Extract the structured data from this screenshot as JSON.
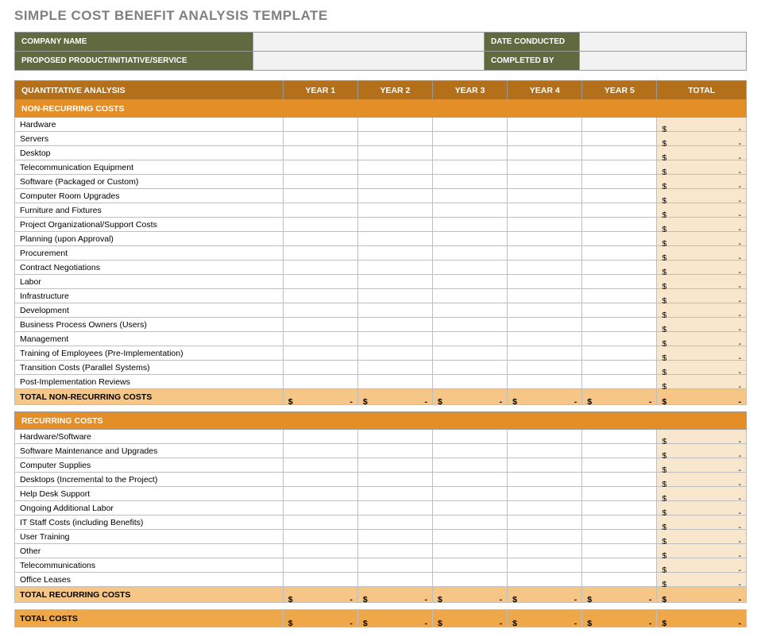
{
  "title": "SIMPLE COST BENEFIT ANALYSIS TEMPLATE",
  "info": {
    "company_label": "COMPANY NAME",
    "company_value": "",
    "date_label": "DATE CONDUCTED",
    "date_value": "",
    "product_label": "PROPOSED PRODUCT/INITIATIVE/SERVICE",
    "product_value": "",
    "completed_label": "COMPLETED BY",
    "completed_value": ""
  },
  "headers": {
    "main": "QUANTITATIVE ANALYSIS",
    "y1": "YEAR 1",
    "y2": "YEAR 2",
    "y3": "YEAR 3",
    "y4": "YEAR 4",
    "y5": "YEAR 5",
    "total": "TOTAL"
  },
  "categories": {
    "nonrec": "NON-RECURRING COSTS",
    "rec": "RECURRING COSTS"
  },
  "nonrec_items": [
    "Hardware",
    "Servers",
    "Desktop",
    "Telecommunication Equipment",
    "Software (Packaged or Custom)",
    "Computer Room Upgrades",
    "Furniture and Fixtures",
    "Project Organizational/Support Costs",
    "Planning (upon Approval)",
    "Procurement",
    "Contract Negotiations",
    "Labor",
    "Infrastructure",
    "Development",
    "Business Process Owners (Users)",
    "Management",
    "Training of Employees (Pre-Implementation)",
    "Transition Costs (Parallel Systems)",
    "Post-Implementation Reviews"
  ],
  "rec_items": [
    "Hardware/Software",
    "Software Maintenance and Upgrades",
    "Computer Supplies",
    "Desktops (Incremental to the Project)",
    "Help Desk Support",
    "Ongoing Additional Labor",
    "IT Staff Costs (including Benefits)",
    "User Training",
    "Other",
    "Telecommunications",
    "Office Leases"
  ],
  "totals": {
    "nonrec_label": "TOTAL NON-RECURRING COSTS",
    "rec_label": "TOTAL RECURRING COSTS",
    "grand_label": "TOTAL COSTS"
  },
  "cur": "$",
  "dash": "-",
  "colors": {
    "info_bg": "#5f6b3e",
    "header_bg": "#b36f1a",
    "cat_bg": "#e38e27",
    "total_col_bg": "#f8e6cd",
    "subtotal_bg": "#f6c687",
    "grand_bg": "#eea84a",
    "title_color": "#808080"
  }
}
